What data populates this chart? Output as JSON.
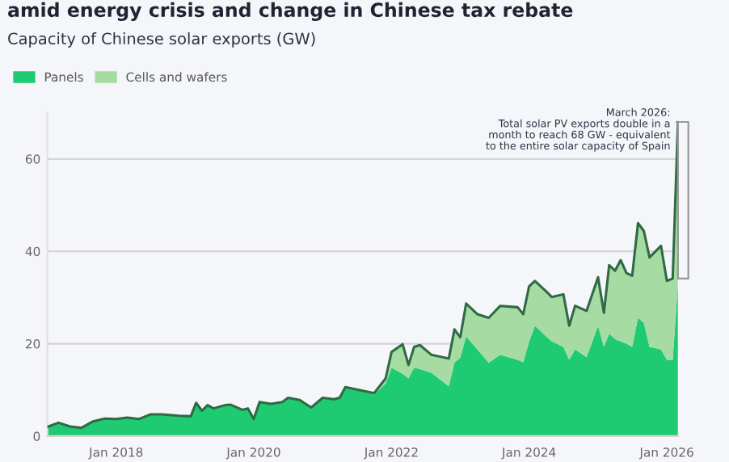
{
  "chart_data": {
    "type": "area",
    "stacked": true,
    "title": "amid energy crisis and change in Chinese tax rebate",
    "subtitle": "Capacity of Chinese solar exports (GW)",
    "x": [
      "2017-01",
      "2017-03",
      "2017-05",
      "2017-07",
      "2017-09",
      "2017-11",
      "2018-01",
      "2018-03",
      "2018-05",
      "2018-07",
      "2018-09",
      "2018-12",
      "2019-02",
      "2019-03",
      "2019-04",
      "2019-05",
      "2019-06",
      "2019-08",
      "2019-09",
      "2019-11",
      "2019-12",
      "2020-01",
      "2020-02",
      "2020-04",
      "2020-06",
      "2020-07",
      "2020-09",
      "2020-11",
      "2021-01",
      "2021-03",
      "2021-04",
      "2021-05",
      "2021-07",
      "2021-10",
      "2021-12",
      "2022-01",
      "2022-03",
      "2022-04",
      "2022-05",
      "2022-06",
      "2022-08",
      "2022-11",
      "2022-12",
      "2023-01",
      "2023-02",
      "2023-04",
      "2023-06",
      "2023-08",
      "2023-11",
      "2023-12",
      "2024-01",
      "2024-02",
      "2024-04",
      "2024-05",
      "2024-07",
      "2024-08",
      "2024-09",
      "2024-11",
      "2025-01",
      "2025-02",
      "2025-03",
      "2025-04",
      "2025-05",
      "2025-06",
      "2025-07",
      "2025-08",
      "2025-09",
      "2025-10",
      "2025-12",
      "2026-01",
      "2026-02",
      "2026-03"
    ],
    "series": [
      {
        "name": "Panels",
        "color": "#1fcb72",
        "values": [
          2.0,
          2.9,
          2.1,
          1.8,
          3.2,
          3.8,
          3.7,
          4.0,
          3.7,
          4.7,
          4.7,
          4.4,
          4.3,
          7.2,
          5.5,
          6.7,
          6.0,
          6.7,
          6.8,
          5.7,
          6.0,
          3.7,
          7.4,
          7.0,
          7.4,
          8.3,
          7.8,
          6.2,
          8.3,
          8.0,
          8.3,
          10.6,
          10.1,
          9.0,
          11.4,
          14.8,
          13.5,
          12.5,
          14.8,
          14.5,
          13.7,
          10.8,
          15.9,
          17.0,
          21.6,
          18.8,
          15.9,
          17.6,
          16.5,
          16.0,
          20.5,
          23.9,
          21.6,
          20.5,
          19.3,
          16.5,
          18.8,
          17.1,
          23.9,
          19.3,
          22.2,
          21.0,
          20.5,
          20.0,
          19.3,
          25.6,
          24.5,
          19.3,
          18.8,
          16.5,
          16.5,
          33
        ]
      },
      {
        "name": "Cells and wafers",
        "color": "#a6dca4",
        "values": [
          0,
          0,
          0,
          0,
          0,
          0,
          0,
          0,
          0,
          0,
          0,
          0,
          0,
          0,
          0,
          0,
          0,
          0,
          0,
          0,
          0,
          0,
          0,
          0,
          0,
          0,
          0,
          0,
          0,
          0,
          0,
          0,
          0,
          0.3,
          1.1,
          3.4,
          6.4,
          2.9,
          4.5,
          5.2,
          3.9,
          6.0,
          7.2,
          4.4,
          7.1,
          7.6,
          9.7,
          10.6,
          11.4,
          10.4,
          11.9,
          9.7,
          9.7,
          9.6,
          11.4,
          7.4,
          9.4,
          10.0,
          10.5,
          7.4,
          14.8,
          14.8,
          17.6,
          15.3,
          15.4,
          20.5,
          19.9,
          19.4,
          22.4,
          17.1,
          17.6,
          35
        ]
      }
    ],
    "xlim": [
      "2017-01",
      "2026-03"
    ],
    "xticks": [
      {
        "value": "2018-01",
        "label": "Jan 2018"
      },
      {
        "value": "2020-01",
        "label": "Jan 2020"
      },
      {
        "value": "2022-01",
        "label": "Jan 2022"
      },
      {
        "value": "2024-01",
        "label": "Jan 2024"
      },
      {
        "value": "2026-01",
        "label": "Jan 2026"
      }
    ],
    "ylim": [
      0,
      70
    ],
    "yticks": [
      0,
      20,
      40,
      60
    ],
    "grid": "y",
    "legend": "top left",
    "annotations": [
      {
        "text": "March 2026:\nTotal solar PV exports double in a\nmonth to reach 68 GW - equivalent\nto the entire solar capacity of Spain",
        "x": "2026-03",
        "y": 68
      }
    ]
  }
}
